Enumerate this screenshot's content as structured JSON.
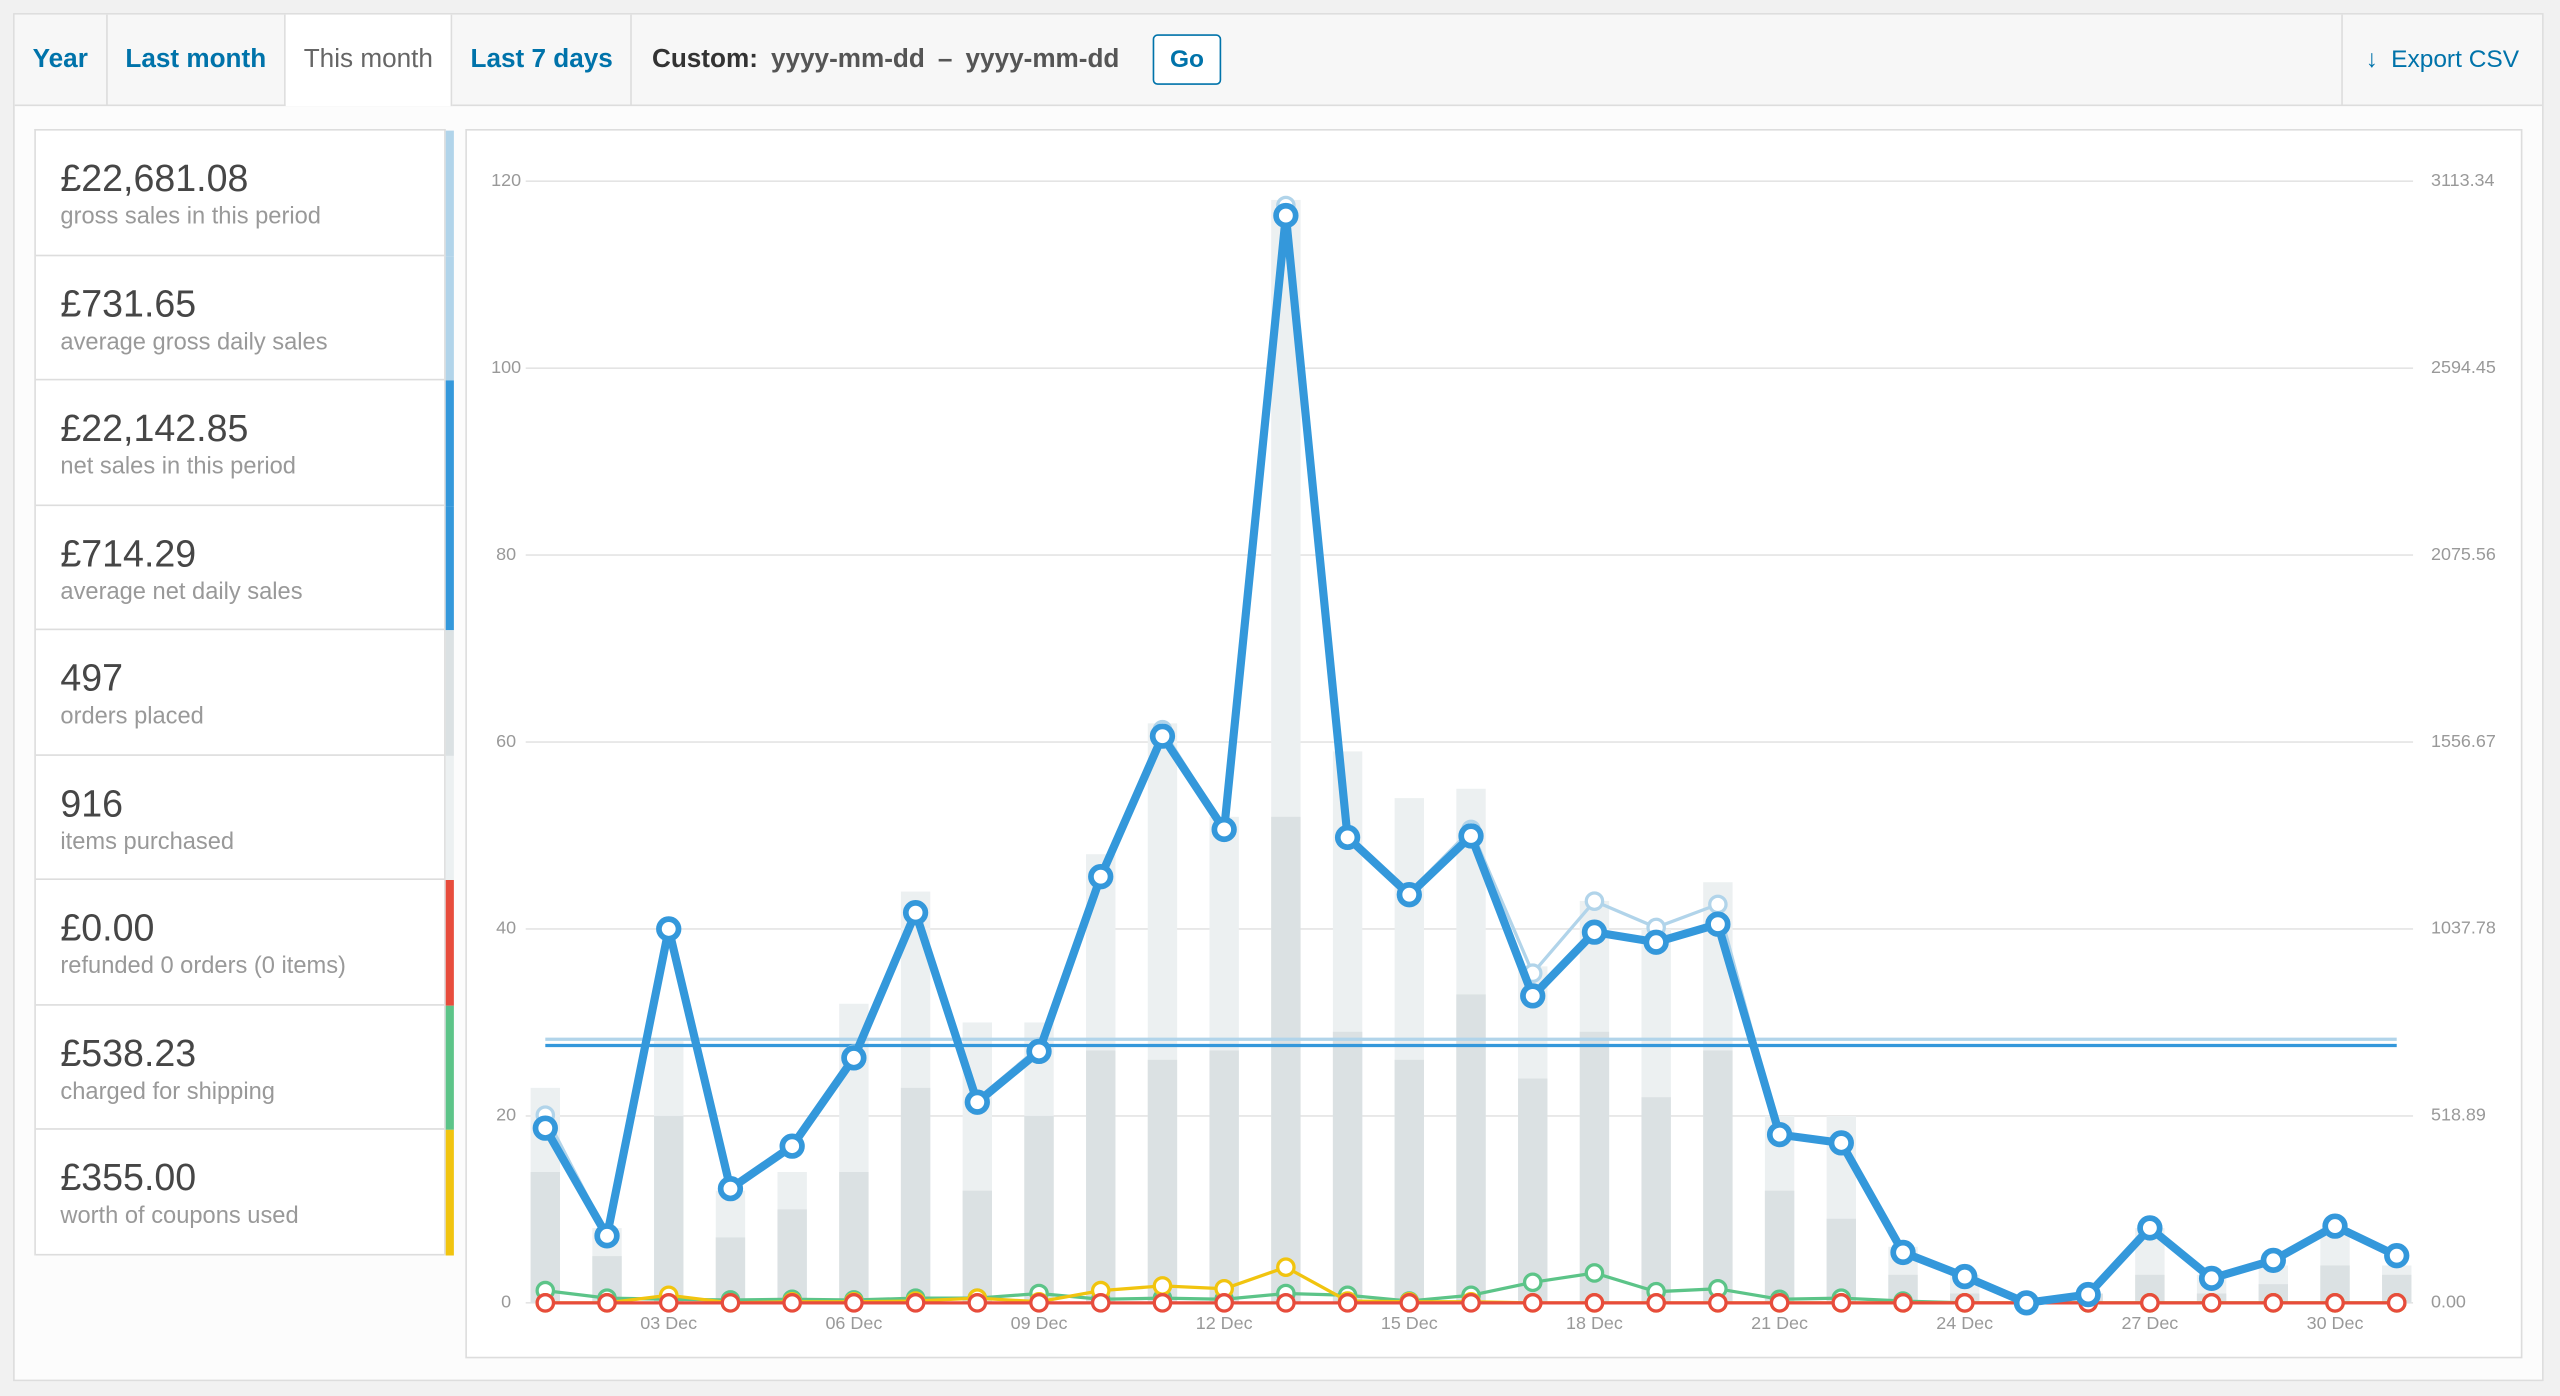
{
  "tabs": [
    "Year",
    "Last month",
    "This month",
    "Last 7 days"
  ],
  "active_tab": 2,
  "custom": {
    "label": "Custom:",
    "from": "yyyy-mm-dd",
    "separator": "–",
    "to": "yyyy-mm-dd",
    "button": "Go"
  },
  "export": "Export CSV",
  "summary": [
    {
      "value": "£22,681.08",
      "label": "gross sales in this period",
      "color": "#b1d4ea"
    },
    {
      "value": "£731.65",
      "label": "average gross daily sales",
      "color": "#b1d4ea"
    },
    {
      "value": "£22,142.85",
      "label": "net sales in this period",
      "color": "#3498db"
    },
    {
      "value": "£714.29",
      "label": "average net daily sales",
      "color": "#3498db"
    },
    {
      "value": "497",
      "label": "orders placed",
      "color": "#dbe1e3"
    },
    {
      "value": "916",
      "label": "items purchased",
      "color": "#ecf0f1"
    },
    {
      "value": "£0.00",
      "label": "refunded 0 orders (0 items)",
      "color": "#e74c3c"
    },
    {
      "value": "£538.23",
      "label": "charged for shipping",
      "color": "#5cc488"
    },
    {
      "value": "£355.00",
      "label": "worth of coupons used",
      "color": "#f1c40f"
    }
  ],
  "chart_data": {
    "type": "line",
    "categories": [
      null,
      null,
      "03 Dec",
      null,
      null,
      "06 Dec",
      null,
      null,
      "09 Dec",
      null,
      null,
      "12 Dec",
      null,
      null,
      "15 Dec",
      null,
      null,
      "18 Dec",
      null,
      null,
      "21 Dec",
      null,
      null,
      "24 Dec",
      null,
      null,
      "27 Dec",
      null,
      null,
      "30 Dec",
      null
    ],
    "ylim": [
      0,
      120
    ],
    "yticks": [
      0,
      20,
      40,
      60,
      80,
      100,
      120
    ],
    "y2lim": [
      0,
      3113.34
    ],
    "y2ticks": [
      {
        "value": 0,
        "label": "0.00"
      },
      518.89,
      1037.78,
      1556.67,
      2075.56,
      2594.45,
      3113.34
    ],
    "grid": true,
    "series": [
      {
        "style": "bar",
        "color": "#ecf0f1",
        "axis": "y",
        "values": [
          23,
          8,
          28,
          12,
          14,
          32,
          44,
          30,
          30,
          48,
          62,
          52,
          118,
          59,
          54,
          55,
          36,
          43,
          40,
          45,
          20,
          20,
          6,
          3,
          0,
          1,
          8,
          3,
          4,
          8,
          4
        ]
      },
      {
        "style": "bar",
        "color": "#dbe1e3",
        "axis": "y",
        "values": [
          14,
          5,
          20,
          7,
          10,
          14,
          23,
          12,
          20,
          27,
          26,
          27,
          52,
          29,
          26,
          33,
          24,
          29,
          22,
          27,
          12,
          9,
          3,
          1,
          0,
          1,
          3,
          1,
          2,
          4,
          3
        ]
      },
      {
        "style": "line",
        "color": "#5cc488",
        "axis": "y2",
        "values": [
          34,
          13,
          10,
          8,
          10,
          8,
          13,
          13,
          26,
          10,
          13,
          10,
          26,
          21,
          5,
          21,
          57,
          83,
          31,
          39,
          10,
          13,
          5,
          0,
          0,
          0,
          0,
          0,
          0,
          0,
          0
        ]
      },
      {
        "style": "line",
        "color": "#f1c40f",
        "axis": "y2",
        "values": [
          0,
          0,
          21,
          0,
          3,
          3,
          5,
          13,
          3,
          34,
          47,
          39,
          99,
          5,
          3,
          3,
          0,
          0,
          0,
          0,
          0,
          0,
          0,
          0,
          0,
          0,
          0,
          0,
          0,
          0,
          0
        ]
      },
      {
        "style": "line",
        "color": "#e74c3c",
        "axis": "y2",
        "values": [
          0,
          0,
          0,
          0,
          0,
          0,
          0,
          0,
          0,
          0,
          0,
          0,
          0,
          0,
          0,
          0,
          0,
          0,
          0,
          0,
          0,
          0,
          0,
          0,
          0,
          0,
          0,
          0,
          0,
          0,
          0
        ]
      },
      {
        "style": "line",
        "color": "#b1d4ea",
        "axis": "y2",
        "values": [
          521,
          190,
          1040,
          320,
          440,
          690,
          1090,
          565,
          710,
          1190,
          1591,
          1320,
          3046,
          1300,
          1140,
          1314,
          915,
          1115,
          1042,
          1106,
          470,
          448,
          142,
          75,
          0,
          25,
          212,
          70,
          120,
          216,
          133
        ]
      },
      {
        "style": "line",
        "color": "#3498db",
        "axis": "y2",
        "values": [
          485,
          186,
          1038,
          317,
          435,
          680,
          1083,
          557,
          698,
          1183,
          1573,
          1314,
          3018,
          1292,
          1133,
          1296,
          852,
          1029,
          1001,
          1051,
          467,
          444,
          140,
          73,
          0,
          23,
          208,
          68,
          118,
          213,
          131
        ]
      }
    ],
    "averages": [
      {
        "value": 731.65,
        "color": "#b1d4ea"
      },
      {
        "value": 714.29,
        "color": "#3498db"
      }
    ]
  }
}
